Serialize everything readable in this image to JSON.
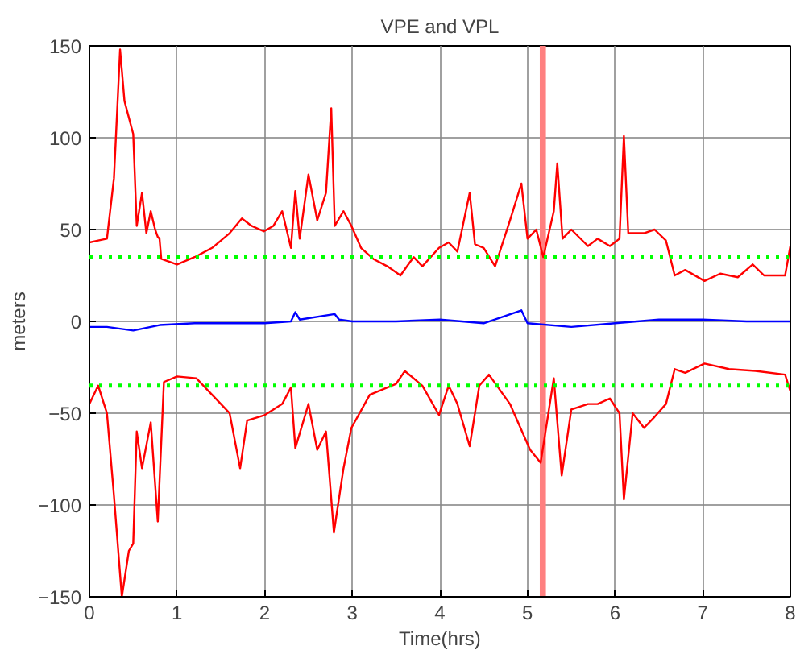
{
  "chart_data": {
    "type": "line",
    "title": "VPE and VPL",
    "xlabel": "Time(hrs)",
    "ylabel": "meters",
    "xlim": [
      0,
      8
    ],
    "xticks": [
      0,
      1,
      2,
      3,
      4,
      5,
      6,
      7,
      8
    ],
    "ylim": [
      -150,
      150
    ],
    "yticks": [
      -150,
      -100,
      -50,
      0,
      50,
      100,
      150
    ],
    "grid": true,
    "line_style": "solid",
    "series": [
      {
        "color": "#ff0000",
        "x": [
          0,
          0.1,
          0.2,
          0.28,
          0.35,
          0.4,
          0.5,
          0.54,
          0.6,
          0.65,
          0.7,
          0.75,
          0.78,
          0.8,
          0.82,
          1.0,
          1.2,
          1.4,
          1.6,
          1.74,
          1.85,
          1.99,
          2.1,
          2.2,
          2.3,
          2.35,
          2.4,
          2.5,
          2.6,
          2.7,
          2.76,
          2.8,
          2.9,
          2.99,
          3.1,
          3.24,
          3.4,
          3.55,
          3.7,
          3.8,
          3.99,
          4.1,
          4.2,
          4.34,
          4.4,
          4.5,
          4.63,
          4.8,
          4.93,
          5.0,
          5.1,
          5.18,
          5.3,
          5.34,
          5.4,
          5.5,
          5.69,
          5.8,
          5.94,
          6.05,
          6.1,
          6.15,
          6.33,
          6.45,
          6.58,
          6.68,
          6.8,
          7.02,
          7.2,
          7.4,
          7.57,
          7.7,
          7.94,
          8.0
        ],
        "values": [
          43,
          44,
          45,
          78,
          148,
          120,
          102,
          52,
          70,
          48,
          60,
          50,
          46,
          45,
          34,
          31,
          35,
          40,
          48,
          56,
          52,
          49,
          52,
          60,
          40,
          71,
          45,
          80,
          55,
          70,
          116,
          52,
          60,
          52,
          40,
          34,
          30,
          25,
          35,
          30,
          40,
          43,
          38,
          70,
          42,
          40,
          30,
          55,
          75,
          45,
          50,
          35,
          60,
          86,
          45,
          50,
          41,
          45,
          41,
          45,
          101,
          48,
          48,
          50,
          44,
          25,
          28,
          22,
          26,
          24,
          31,
          25,
          25,
          41
        ]
      },
      {
        "color": "#ff0000",
        "x": [
          0,
          0.1,
          0.2,
          0.28,
          0.37,
          0.45,
          0.5,
          0.54,
          0.6,
          0.7,
          0.78,
          0.85,
          1.0,
          1.22,
          1.4,
          1.6,
          1.72,
          1.8,
          2.0,
          2.2,
          2.3,
          2.35,
          2.5,
          2.6,
          2.7,
          2.79,
          2.9,
          2.99,
          3.2,
          3.5,
          3.6,
          3.8,
          3.99,
          4.1,
          4.2,
          4.34,
          4.45,
          4.56,
          4.8,
          5.03,
          5.15,
          5.3,
          5.39,
          5.5,
          5.69,
          5.8,
          5.94,
          6.05,
          6.1,
          6.2,
          6.33,
          6.45,
          6.58,
          6.68,
          6.8,
          7.02,
          7.3,
          7.6,
          7.94,
          8.0
        ],
        "values": [
          -45,
          -35,
          -50,
          -95,
          -150,
          -125,
          -121,
          -60,
          -80,
          -55,
          -109,
          -33,
          -30,
          -31,
          -40,
          -50,
          -80,
          -54,
          -51,
          -45,
          -36,
          -69,
          -45,
          -70,
          -60,
          -115,
          -80,
          -58,
          -40,
          -34,
          -27,
          -35,
          -51,
          -35,
          -45,
          -68,
          -35,
          -29,
          -45,
          -70,
          -77,
          -31,
          -84,
          -48,
          -45,
          -45,
          -42,
          -50,
          -97,
          -50,
          -58,
          -52,
          -45,
          -26,
          -28,
          -23,
          -26,
          -27,
          -29,
          -38
        ]
      },
      {
        "color": "#0000ff",
        "x": [
          0,
          0.2,
          0.5,
          0.8,
          1.2,
          1.6,
          2.0,
          2.3,
          2.35,
          2.4,
          2.8,
          2.85,
          3.0,
          3.5,
          4.0,
          4.5,
          4.93,
          5.0,
          5.5,
          6.0,
          6.5,
          7.0,
          7.5,
          8.0
        ],
        "values": [
          -3,
          -3,
          -5,
          -2,
          -1,
          -1,
          -1,
          0,
          5,
          1,
          4,
          1,
          0,
          0,
          1,
          -1,
          6,
          -1,
          -3,
          -1,
          1,
          1,
          0,
          0
        ]
      }
    ],
    "ref_lines": [
      {
        "axis": "y",
        "value": 35,
        "color": "#00ff00",
        "line_style": "dotted"
      },
      {
        "axis": "y",
        "value": -35,
        "color": "#00ff00",
        "line_style": "dotted"
      }
    ],
    "bands": [
      {
        "axis": "x",
        "from": 5.14,
        "to": 5.21,
        "color": "#ff8080"
      }
    ]
  }
}
